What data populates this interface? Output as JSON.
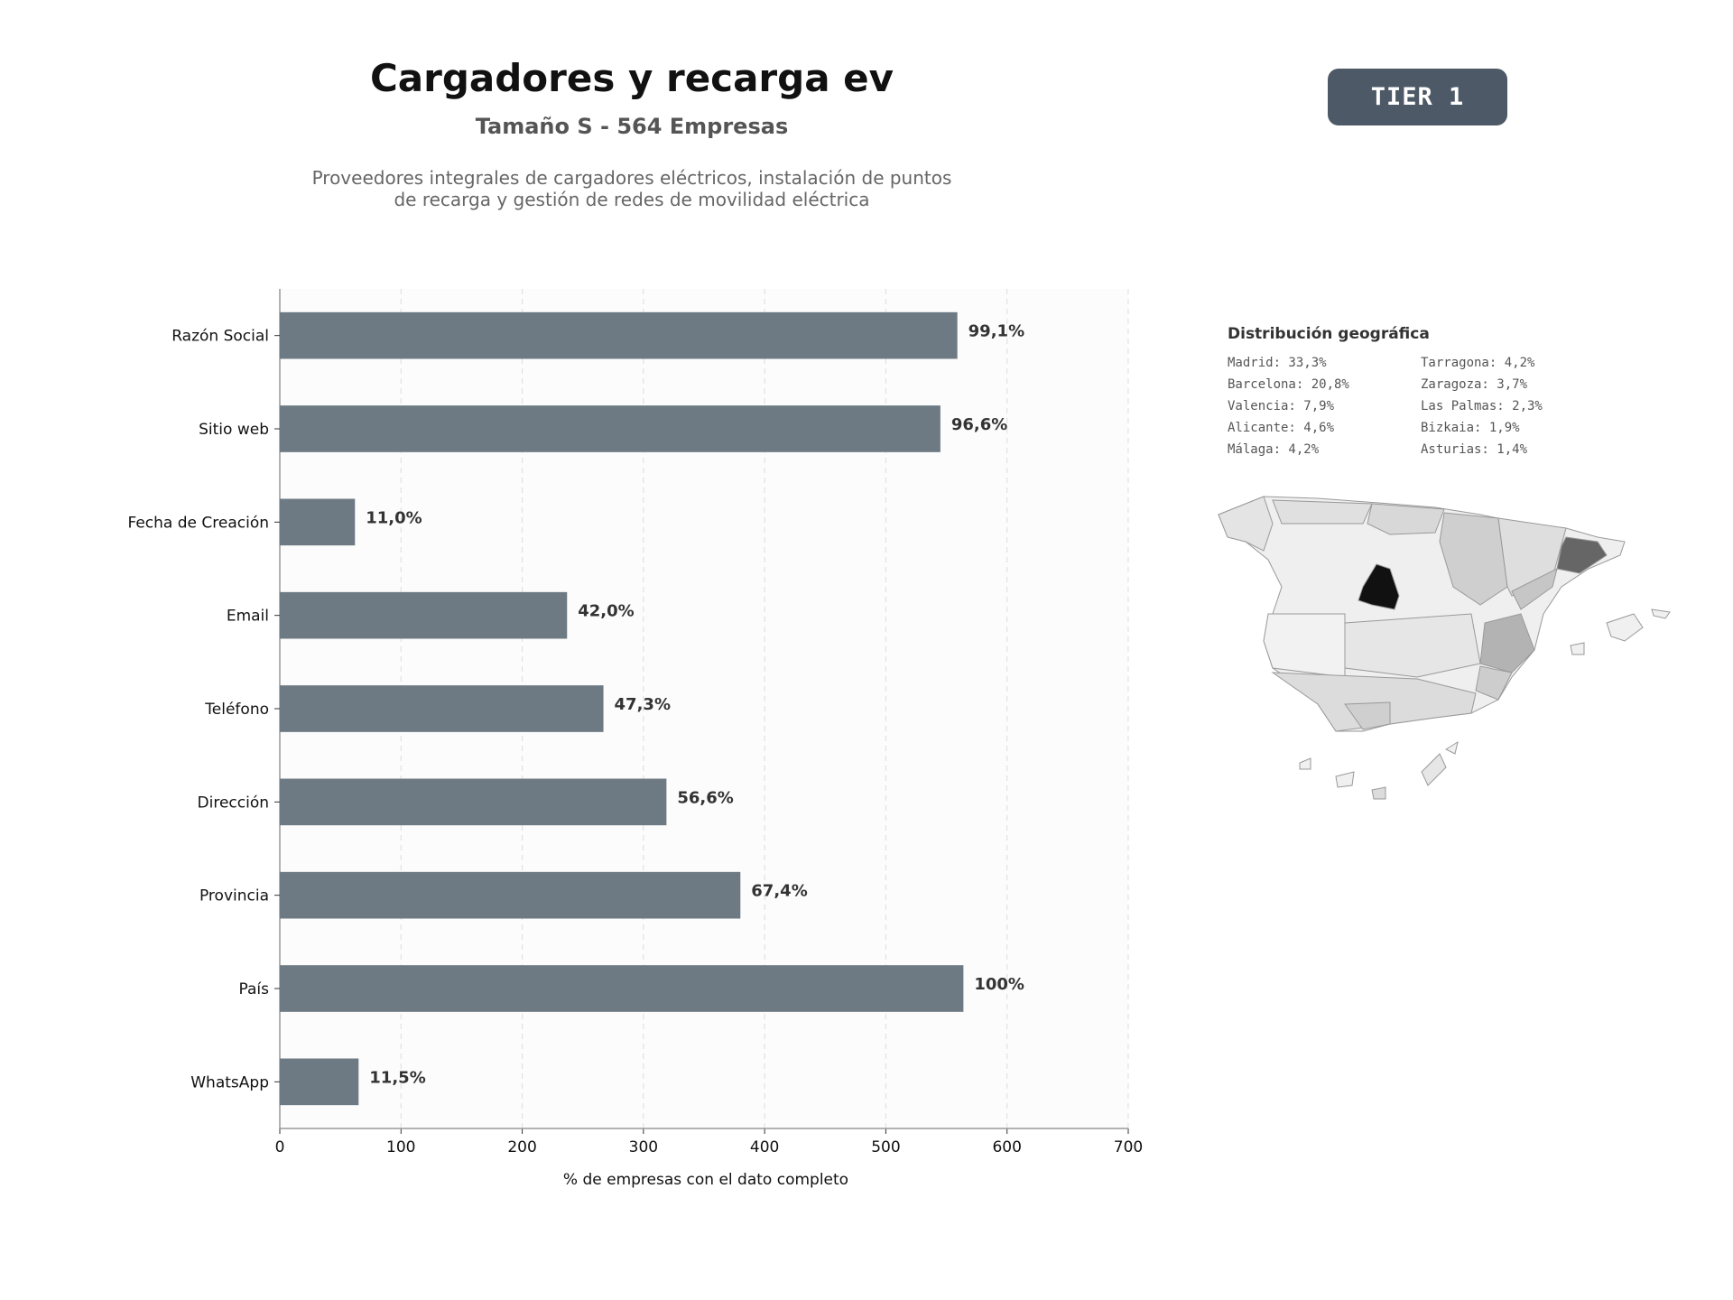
{
  "header": {
    "title": "Cargadores y recarga ev",
    "subtitle": "Tamaño S - 564 Empresas",
    "description_line1": "Proveedores integrales de cargadores eléctricos, instalación de puntos",
    "description_line2": "de recarga y gestión de redes de movilidad eléctrica",
    "tier": "TIER 1"
  },
  "chart_data": {
    "type": "bar",
    "orientation": "horizontal",
    "categories": [
      "Razón Social",
      "Sitio web",
      "Fecha de Creación",
      "Email",
      "Teléfono",
      "Dirección",
      "Provincia",
      "País",
      "WhatsApp"
    ],
    "values": [
      559,
      545,
      62,
      237,
      267,
      319,
      380,
      564,
      65
    ],
    "value_labels": [
      "99,1%",
      "96,6%",
      "11,0%",
      "42,0%",
      "47,3%",
      "56,6%",
      "67,4%",
      "100%",
      "11,5%"
    ],
    "xlabel": "% de empresas con el dato completo",
    "ylabel": "",
    "xlim": [
      0,
      700
    ],
    "xticks": [
      "0",
      "100",
      "200",
      "300",
      "400",
      "500",
      "600",
      "700"
    ],
    "grid": "vertical dashed",
    "bar_color": "#6e7a83"
  },
  "geo": {
    "title": "Distribución geográfica",
    "items": [
      "Madrid: 33,3%",
      "Tarragona: 4,2%",
      "Barcelona: 20,8%",
      "Zaragoza: 3,7%",
      "Valencia: 7,9%",
      "Las Palmas: 2,3%",
      "Alicante: 4,6%",
      "Bizkaia: 1,9%",
      "Málaga: 4,2%",
      "Asturias: 1,4%"
    ]
  }
}
